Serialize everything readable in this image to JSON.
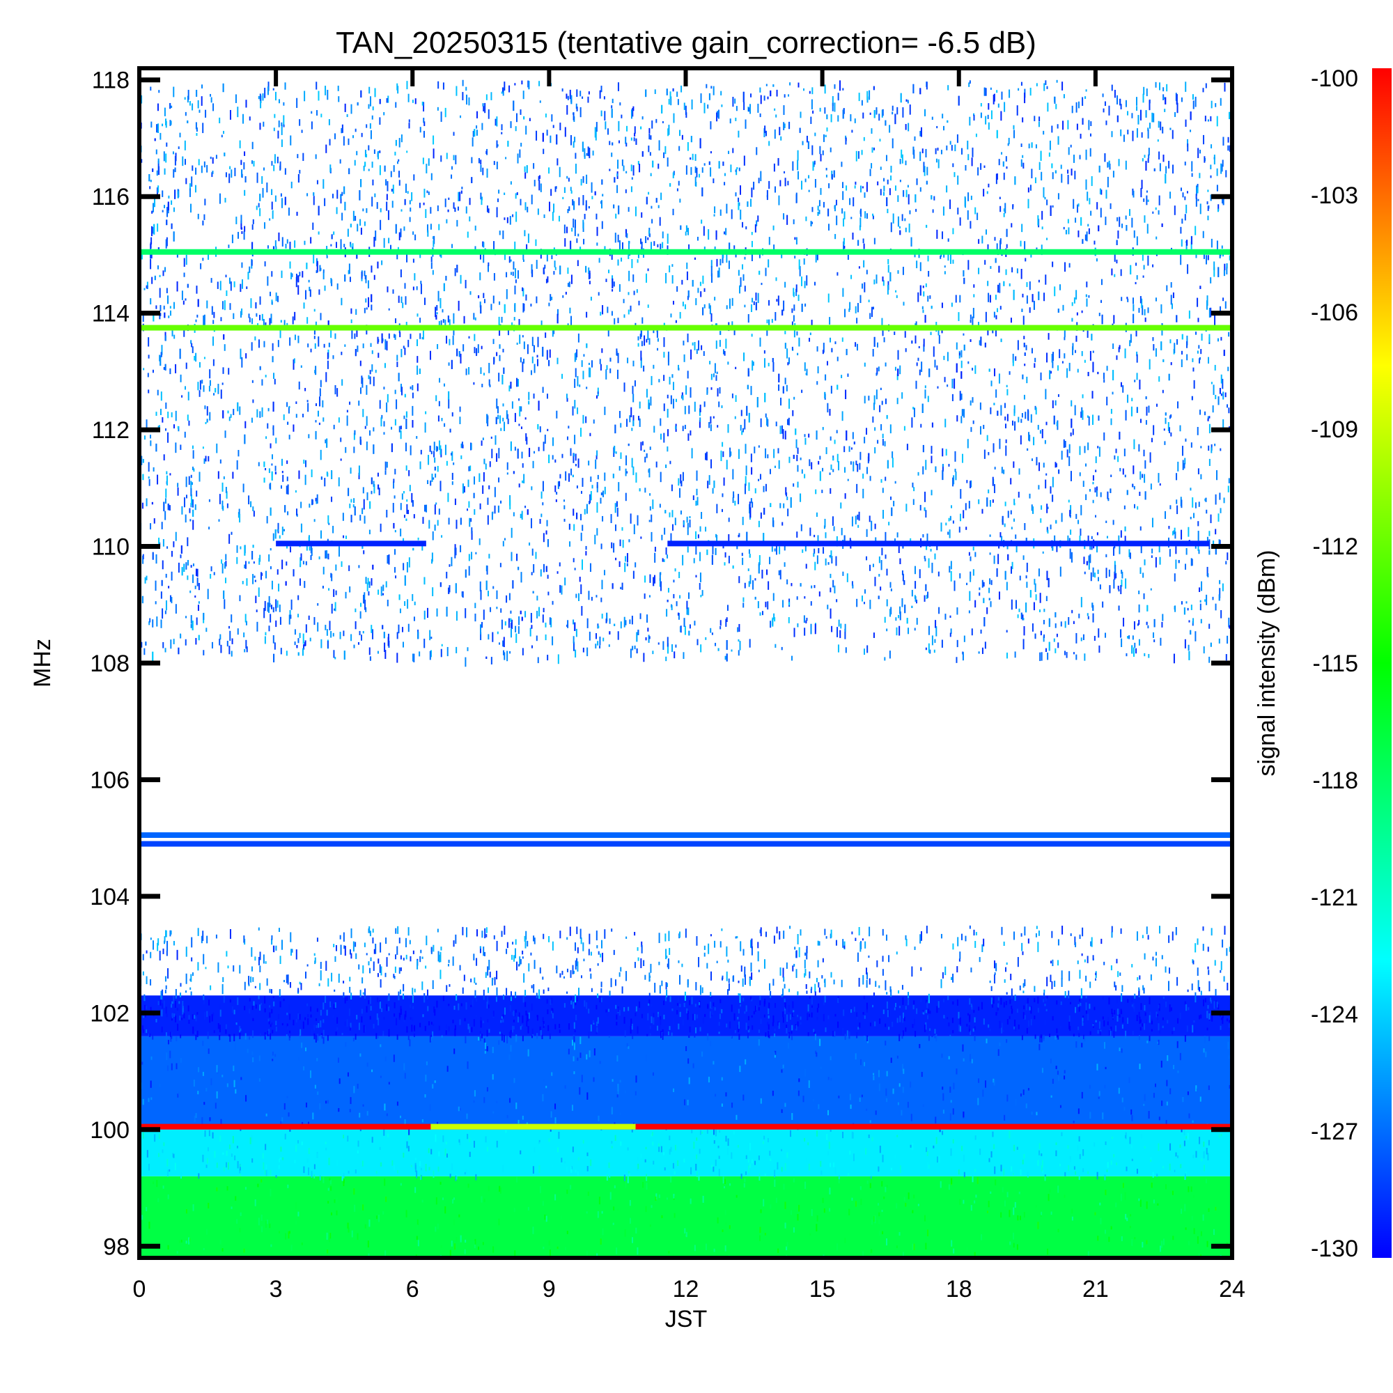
{
  "chart_data": {
    "type": "heatmap",
    "title": "TAN_20250315 (tentative gain_correction= -6.5 dB)",
    "xlabel": "JST",
    "ylabel": "MHz",
    "colorbar_label": "signal intensity (dBm)",
    "xlim": [
      0,
      24
    ],
    "ylim": [
      97.8,
      118.2
    ],
    "clim": [
      -130,
      -100
    ],
    "x_ticks": [
      "0",
      "3",
      "6",
      "9",
      "12",
      "15",
      "18",
      "21",
      "24"
    ],
    "y_ticks": [
      "98",
      "100",
      "102",
      "104",
      "106",
      "108",
      "110",
      "112",
      "114",
      "116",
      "118"
    ],
    "colorbar_ticks": [
      "-100",
      "-103",
      "-106",
      "-109",
      "-112",
      "-115",
      "-118",
      "-121",
      "-124",
      "-127",
      "-130"
    ],
    "colormap": [
      "#0000ff",
      "#0080ff",
      "#00ffff",
      "#00ff80",
      "#00ff00",
      "#80ff00",
      "#ffff00",
      "#ff8000",
      "#ff0000"
    ],
    "bands": [
      {
        "freq_range": [
          97.8,
          99.2
        ],
        "jst_range": [
          0,
          24
        ],
        "level_dBm": -117,
        "pattern": "solid"
      },
      {
        "freq_range": [
          99.2,
          100.0
        ],
        "jst_range": [
          0,
          24
        ],
        "level_dBm": -123,
        "pattern": "solid"
      },
      {
        "freq_range": [
          100.0,
          101.6
        ],
        "jst_range": [
          0,
          24
        ],
        "level_dBm": -127,
        "pattern": "solid"
      },
      {
        "freq_range": [
          101.6,
          102.3
        ],
        "jst_range": [
          0,
          24
        ],
        "level_dBm": -129,
        "pattern": "dense"
      },
      {
        "freq_range": [
          102.3,
          103.5
        ],
        "jst_range": [
          0,
          24
        ],
        "level_dBm": -129,
        "pattern": "sparse"
      },
      {
        "freq_range": [
          108.1,
          118.0
        ],
        "jst_range": [
          0,
          24
        ],
        "level_dBm": -129,
        "pattern": "speckle"
      }
    ],
    "lines": [
      {
        "freq": 100.05,
        "jst_range": [
          0,
          6.4
        ],
        "level_dBm": -100
      },
      {
        "freq": 100.05,
        "jst_range": [
          6.4,
          10.9
        ],
        "level_dBm": -109
      },
      {
        "freq": 100.05,
        "jst_range": [
          10.9,
          24
        ],
        "level_dBm": -100
      },
      {
        "freq": 105.05,
        "jst_range": [
          0,
          24
        ],
        "level_dBm": -127
      },
      {
        "freq": 104.9,
        "jst_range": [
          0,
          24
        ],
        "level_dBm": -128
      },
      {
        "freq": 110.05,
        "jst_range": [
          3,
          6.3
        ],
        "level_dBm": -129
      },
      {
        "freq": 110.05,
        "jst_range": [
          11.6,
          23.5
        ],
        "level_dBm": -129
      },
      {
        "freq": 113.75,
        "jst_range": [
          0,
          24
        ],
        "level_dBm": -112
      },
      {
        "freq": 115.05,
        "jst_range": [
          0,
          24
        ],
        "level_dBm": -118
      }
    ]
  }
}
